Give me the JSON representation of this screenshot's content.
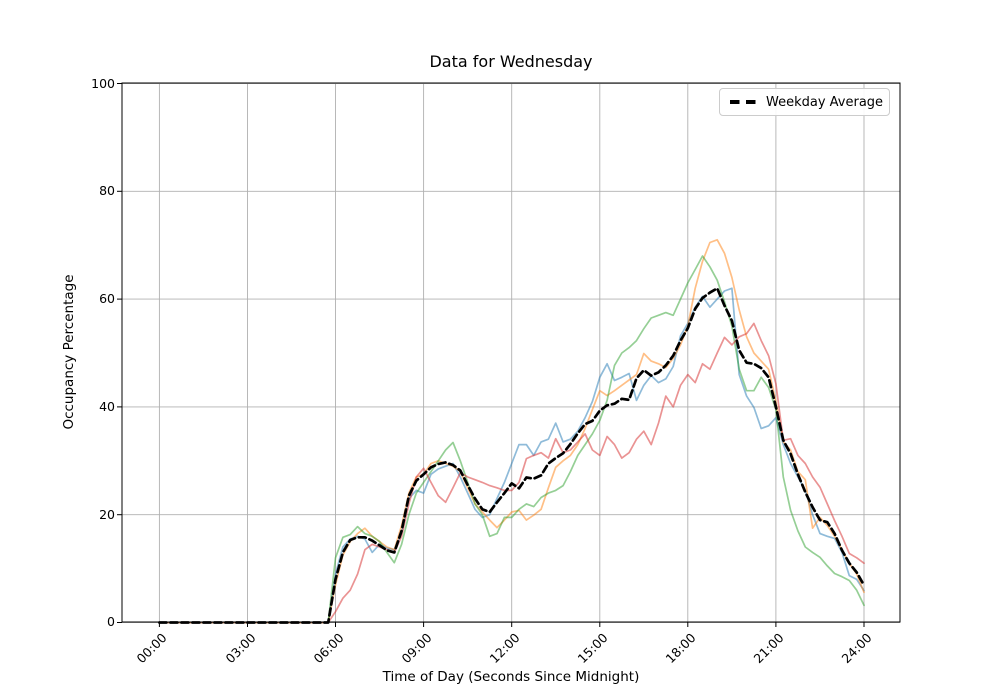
{
  "chart_data": {
    "type": "line",
    "title": "Data for Wednesday",
    "xlabel": "Time of Day (Seconds Since Midnight)",
    "ylabel": "Occupancy Percentage",
    "x_ticks": [
      "00:00",
      "03:00",
      "06:00",
      "09:00",
      "12:00",
      "15:00",
      "18:00",
      "21:00",
      "24:00"
    ],
    "x_tick_hours": [
      0,
      3,
      6,
      9,
      12,
      15,
      18,
      21,
      24
    ],
    "y_ticks": [
      0,
      20,
      40,
      60,
      80,
      100
    ],
    "ylim": [
      0,
      100
    ],
    "xlim_hours": [
      0,
      24
    ],
    "grid": true,
    "grid_color": "#b0b0b0",
    "legend": {
      "label": "Weekday Average",
      "position": "upper right"
    },
    "x_start_hour": 0,
    "x_step_hours": 0.25,
    "series": [
      {
        "name": "day-series-1",
        "color": "#1f77b4",
        "alpha": 0.5,
        "width": 1.7,
        "values": [
          0,
          0,
          0,
          0,
          0,
          0,
          0,
          0,
          0,
          0,
          0,
          0,
          0,
          0,
          0,
          0,
          0,
          0,
          0,
          0,
          0,
          0,
          0,
          0,
          9,
          14,
          15.5,
          16,
          15.5,
          13,
          14.5,
          13.8,
          13.5,
          16.5,
          23,
          24.5,
          24,
          27.5,
          28.5,
          29,
          29.5,
          27,
          24,
          21,
          19.5,
          20,
          23,
          26,
          29.5,
          33,
          33,
          31,
          33.5,
          34,
          37,
          33.5,
          34,
          35.5,
          38,
          41,
          45.5,
          48,
          44.9,
          45.5,
          46.2,
          41.2,
          44,
          45.8,
          44.5,
          45.2,
          47.5,
          53.2,
          55.5,
          58.5,
          60.5,
          58.5,
          60,
          61.5,
          62,
          46,
          42,
          39.9,
          36,
          36.5,
          38,
          33,
          29.5,
          27,
          24.5,
          20,
          16.5,
          16,
          15.6,
          13,
          8.7,
          8,
          5.9
        ]
      },
      {
        "name": "day-series-2",
        "color": "#ff7f0e",
        "alpha": 0.5,
        "width": 1.7,
        "values": [
          0,
          0,
          0,
          0,
          0,
          0,
          0,
          0,
          0,
          0,
          0,
          0,
          0,
          0,
          0,
          0,
          0,
          0,
          0,
          0,
          0,
          0,
          0,
          0,
          7,
          12.5,
          15,
          16.5,
          17.5,
          16,
          15,
          14,
          13.5,
          18,
          24,
          27,
          27.5,
          29.5,
          30,
          29.5,
          29,
          28,
          25,
          22,
          20.5,
          19,
          17.6,
          19,
          20.5,
          20.8,
          19,
          19.9,
          21,
          25,
          28.8,
          30,
          31,
          33,
          36,
          39.5,
          43,
          42.1,
          43,
          44,
          45,
          46,
          49.9,
          48.5,
          48,
          47.3,
          49,
          51.5,
          55,
          62,
          67,
          70.5,
          71,
          68.5,
          64,
          58,
          53,
          50,
          48.5,
          47,
          41,
          33.5,
          32,
          28,
          26.5,
          17.5,
          19.5,
          18,
          16,
          13.5,
          11,
          9,
          5.6
        ]
      },
      {
        "name": "day-series-3",
        "color": "#2ca02c",
        "alpha": 0.5,
        "width": 1.7,
        "values": [
          0,
          0,
          0,
          0,
          0,
          0,
          0,
          0,
          0,
          0,
          0,
          0,
          0,
          0,
          0,
          0,
          0,
          0,
          0,
          0,
          0,
          0,
          0,
          0,
          12,
          15.8,
          16.3,
          17.8,
          16.5,
          16,
          15,
          13,
          11.1,
          14.5,
          20,
          24,
          26,
          28,
          30,
          32,
          33.4,
          30,
          26,
          22,
          20,
          16,
          16.5,
          19.5,
          19.5,
          21,
          22,
          21.5,
          23.2,
          24,
          24.5,
          25.4,
          28,
          31,
          33,
          35,
          37.5,
          41.2,
          47.7,
          50,
          51,
          52.3,
          54.5,
          56.5,
          57,
          57.5,
          57,
          60,
          63,
          65.5,
          68,
          66,
          63.5,
          59.5,
          55,
          47,
          43,
          43,
          45.5,
          43.6,
          39.5,
          27,
          20.8,
          17,
          14,
          13,
          12.1,
          10.5,
          9.1,
          8.5,
          7.8,
          6,
          3.2
        ]
      },
      {
        "name": "day-series-4",
        "color": "#d62728",
        "alpha": 0.5,
        "width": 1.7,
        "values": [
          0,
          0,
          0,
          0,
          0,
          0,
          0,
          0,
          0,
          0,
          0,
          0,
          0,
          0,
          0,
          0,
          0,
          0,
          0,
          0,
          0,
          0,
          0,
          0,
          2,
          4.5,
          6,
          9,
          13.5,
          14.5,
          14,
          13.5,
          13,
          16,
          22,
          27,
          28.6,
          26,
          23.5,
          22.3,
          25,
          27.8,
          27,
          26.5,
          26,
          25.4,
          25,
          24.5,
          24.5,
          26,
          30.4,
          31,
          31.5,
          30.5,
          34.1,
          31.5,
          32,
          33.5,
          35,
          32,
          31,
          34.5,
          33,
          30.5,
          31.5,
          34,
          35.5,
          33,
          37,
          42,
          40,
          44,
          46,
          44.5,
          48,
          47,
          50,
          52.9,
          51.5,
          53,
          53.6,
          55.5,
          52.3,
          49.5,
          44.3,
          33.8,
          34.1,
          31,
          29.5,
          27,
          25.1,
          22,
          18.9,
          16,
          12.8,
          12,
          11
        ]
      },
      {
        "name": "Weekday Average",
        "color": "#000000",
        "width": 2.7,
        "style": "dashed",
        "values": [
          0,
          0,
          0,
          0,
          0,
          0,
          0,
          0,
          0,
          0,
          0,
          0,
          0,
          0,
          0,
          0,
          0,
          0,
          0,
          0,
          0,
          0,
          0,
          0,
          8,
          13,
          15.3,
          15.8,
          15.8,
          15.2,
          14.3,
          13.4,
          13,
          17,
          23.5,
          26.3,
          27.5,
          28.8,
          29.4,
          29.7,
          29.2,
          28.2,
          25.5,
          23,
          21,
          20.5,
          22.3,
          24,
          25.8,
          24.9,
          26.9,
          26.7,
          27.3,
          29.5,
          30.5,
          31.4,
          33.1,
          35.1,
          36.8,
          37.4,
          39.3,
          40.3,
          40.6,
          41.5,
          41.3,
          45.3,
          46.8,
          45.8,
          46.4,
          47.7,
          49.5,
          52.3,
          54.6,
          58.2,
          60.2,
          61.2,
          62,
          58.8,
          56,
          50.5,
          48.2,
          48,
          47.2,
          45.5,
          40,
          33.8,
          31.3,
          27.5,
          24.2,
          21.4,
          19,
          18.6,
          16.5,
          13.4,
          11,
          9.3,
          6.9
        ]
      }
    ]
  }
}
